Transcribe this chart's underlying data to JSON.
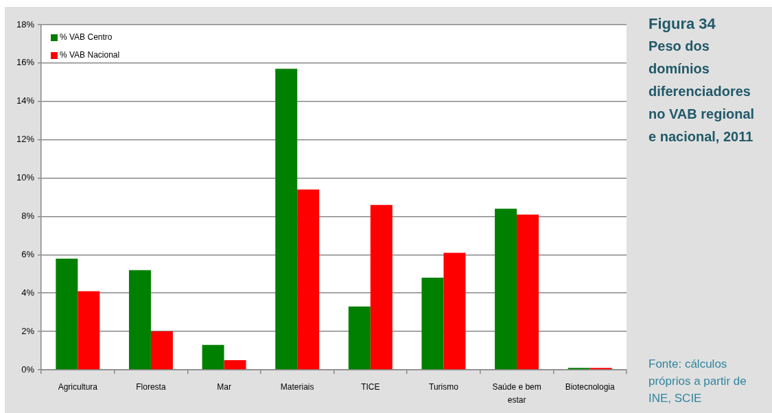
{
  "chart_data": {
    "type": "bar",
    "title": "Figura 34",
    "subtitle": "Peso dos domínios diferenciadores no VAB regional e nacional, 2011",
    "annotations": [
      "Fonte: cálculos próprios a partir de INE, SCIE"
    ],
    "categories": [
      "Agricultura",
      "Floresta",
      "Mar",
      "Materiais",
      "TICE",
      "Turismo",
      "Saúde e bem estar",
      "Biotecnologia"
    ],
    "series": [
      {
        "name": "% VAB Centro",
        "color": "#008000",
        "values": [
          5.8,
          5.2,
          1.3,
          15.7,
          3.3,
          4.8,
          8.4,
          0.1
        ]
      },
      {
        "name": "% VAB Nacional",
        "color": "#ff0000",
        "values": [
          4.1,
          2.0,
          0.5,
          9.4,
          8.6,
          6.1,
          8.1,
          0.1
        ]
      }
    ],
    "ylim": [
      0,
      18
    ],
    "yticks": [
      {
        "value": 0,
        "label": "0%"
      },
      {
        "value": 2,
        "label": "2%"
      },
      {
        "value": 4,
        "label": "4%"
      },
      {
        "value": 6,
        "label": "6%"
      },
      {
        "value": 8,
        "label": "8%"
      },
      {
        "value": 10,
        "label": "10%"
      },
      {
        "value": 12,
        "label": "12%"
      },
      {
        "value": 14,
        "label": "14%"
      },
      {
        "value": 16,
        "label": "16%"
      },
      {
        "value": 18,
        "label": "18%"
      }
    ],
    "grid": "y",
    "legend": "top left"
  }
}
